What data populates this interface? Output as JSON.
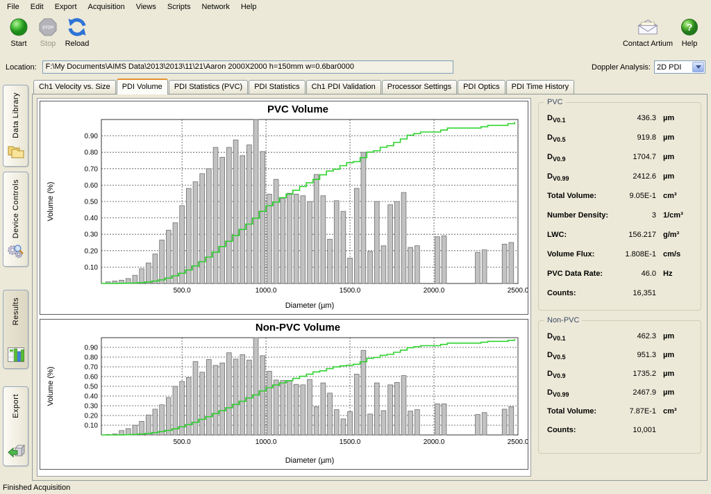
{
  "menu": {
    "items": [
      "File",
      "Edit",
      "Export",
      "Acquisition",
      "Views",
      "Scripts",
      "Network",
      "Help"
    ]
  },
  "toolbar": {
    "left": [
      {
        "label": "Start",
        "icon": "start-icon",
        "enabled": true
      },
      {
        "label": "Stop",
        "icon": "stop-icon",
        "enabled": false
      },
      {
        "label": "Reload",
        "icon": "reload-icon",
        "enabled": true
      }
    ],
    "right": [
      {
        "label": "Contact Artium",
        "icon": "envelope-icon",
        "enabled": true
      },
      {
        "label": "Help",
        "icon": "help-icon",
        "enabled": true
      }
    ]
  },
  "location": {
    "label": "Location:",
    "value": "F:\\My Documents\\AIMS Data\\2013\\2013\\11\\21\\Aaron 2000X2000  h=150mm w=0.6bar0000"
  },
  "doppler": {
    "label": "Doppler Analysis:",
    "value": "2D PDI"
  },
  "side_tabs": [
    {
      "label": "Data Library",
      "icon": "folders-icon",
      "active": false
    },
    {
      "label": "Device Controls",
      "icon": "gears-icon",
      "active": false
    },
    {
      "label": "Results",
      "icon": "results-icon",
      "active": true
    },
    {
      "label": "Export",
      "icon": "export-icon",
      "active": false
    }
  ],
  "tabs": {
    "items": [
      "Ch1 Velocity vs. Size",
      "PDI Volume",
      "PDI Statistics (PVC)",
      "PDI Statistics",
      "Ch1 PDI Validation",
      "Processor Settings",
      "PDI Optics",
      "PDI Time History"
    ],
    "active": "PDI Volume"
  },
  "stats": {
    "pvc": {
      "legend": "PVC",
      "rows": [
        {
          "label": "D",
          "sub": "V0.1",
          "value": "436.3",
          "unit": "µm"
        },
        {
          "label": "D",
          "sub": "V0.5",
          "value": "919.8",
          "unit": "µm"
        },
        {
          "label": "D",
          "sub": "V0.9",
          "value": "1704.7",
          "unit": "µm"
        },
        {
          "label": "D",
          "sub": "V0.99",
          "value": "2412.6",
          "unit": "µm"
        },
        {
          "label": "Total Volume:",
          "sub": "",
          "value": "9.05E-1",
          "unit": "cm³"
        },
        {
          "label": "Number Density:",
          "sub": "",
          "value": "3",
          "unit": "1/cm³"
        },
        {
          "label": "LWC:",
          "sub": "",
          "value": "156.217",
          "unit": "g/m³"
        },
        {
          "label": "Volume Flux:",
          "sub": "",
          "value": "1.808E-1",
          "unit": "cm/s"
        },
        {
          "label": "PVC Data Rate:",
          "sub": "",
          "value": "46.0",
          "unit": "Hz"
        },
        {
          "label": "Counts:",
          "sub": "",
          "value": "16,351",
          "unit": ""
        }
      ]
    },
    "non_pvc": {
      "legend": "Non-PVC",
      "rows": [
        {
          "label": "D",
          "sub": "V0.1",
          "value": "462.3",
          "unit": "µm"
        },
        {
          "label": "D",
          "sub": "V0.5",
          "value": "951.3",
          "unit": "µm"
        },
        {
          "label": "D",
          "sub": "V0.9",
          "value": "1735.2",
          "unit": "µm"
        },
        {
          "label": "D",
          "sub": "V0.99",
          "value": "2467.9",
          "unit": "µm"
        },
        {
          "label": "Total Volume:",
          "sub": "",
          "value": "7.87E-1",
          "unit": "cm³"
        },
        {
          "label": "Counts:",
          "sub": "",
          "value": "10,001",
          "unit": ""
        }
      ]
    }
  },
  "status_bar": "Finished Acquisition",
  "chart_data": [
    {
      "type": "bar",
      "title": "PVC Volume",
      "xlabel": "Diameter (µm)",
      "ylabel": "Volume (%)",
      "xlim": [
        20,
        2500
      ],
      "ylim": [
        0,
        1.0
      ],
      "grid": true,
      "bin_width": 40,
      "x_ticks": [
        500,
        1000,
        1500,
        2000,
        2500
      ],
      "x_tick_labels": [
        "500.0",
        "1000.0",
        "1500.0",
        "2000.0",
        "2500.0"
      ],
      "y_ticks": [
        0.1,
        0.2,
        0.3,
        0.4,
        0.5,
        0.6,
        0.7,
        0.8,
        0.9
      ],
      "bar_color": "#c2c2c2",
      "bar_border": "#6e6e6e",
      "line_color": "#2ed32e",
      "cumulative_line": true,
      "categories": [
        60,
        100,
        140,
        180,
        220,
        260,
        300,
        340,
        380,
        420,
        460,
        500,
        540,
        580,
        620,
        660,
        700,
        740,
        780,
        820,
        860,
        900,
        940,
        980,
        1020,
        1060,
        1100,
        1140,
        1180,
        1220,
        1260,
        1300,
        1340,
        1380,
        1420,
        1460,
        1500,
        1540,
        1580,
        1620,
        1660,
        1700,
        1740,
        1780,
        1820,
        1860,
        1900,
        1940,
        1980,
        2020,
        2060,
        2100,
        2140,
        2180,
        2220,
        2260,
        2300,
        2340,
        2380,
        2420,
        2460
      ],
      "values": [
        0.01,
        0.015,
        0.02,
        0.03,
        0.05,
        0.09,
        0.125,
        0.18,
        0.265,
        0.325,
        0.37,
        0.475,
        0.58,
        0.62,
        0.67,
        0.7,
        0.83,
        0.77,
        0.83,
        0.875,
        0.78,
        0.845,
        1.0,
        0.805,
        0.545,
        0.635,
        0.52,
        0.55,
        0.545,
        0.535,
        0.5,
        0.665,
        0.535,
        0.27,
        0.505,
        0.44,
        0.155,
        0.58,
        0.8,
        0.195,
        0.5,
        0.23,
        0.48,
        0.5,
        0.555,
        0.22,
        0.23,
        0,
        0,
        0.285,
        0.29,
        0,
        0,
        0,
        0,
        0.19,
        0.205,
        0,
        0,
        0.24,
        0.25
      ]
    },
    {
      "type": "bar",
      "title": "Non-PVC Volume",
      "xlabel": "Diameter (µm)",
      "ylabel": "Volume (%)",
      "xlim": [
        20,
        2500
      ],
      "ylim": [
        0,
        1.0
      ],
      "grid": true,
      "bin_width": 40,
      "x_ticks": [
        500,
        1000,
        1500,
        2000,
        2500
      ],
      "x_tick_labels": [
        "500.0",
        "1000.0",
        "1500.0",
        "2000.0",
        "2500.0"
      ],
      "y_ticks": [
        0.1,
        0.2,
        0.3,
        0.4,
        0.5,
        0.6,
        0.7,
        0.8,
        0.9
      ],
      "bar_color": "#c2c2c2",
      "bar_border": "#6e6e6e",
      "line_color": "#2ed32e",
      "cumulative_line": true,
      "categories": [
        60,
        100,
        140,
        180,
        220,
        260,
        300,
        340,
        380,
        420,
        460,
        500,
        540,
        580,
        620,
        660,
        700,
        740,
        780,
        820,
        860,
        900,
        940,
        980,
        1020,
        1060,
        1100,
        1140,
        1180,
        1220,
        1260,
        1300,
        1340,
        1380,
        1420,
        1460,
        1500,
        1540,
        1580,
        1620,
        1660,
        1700,
        1740,
        1780,
        1820,
        1860,
        1900,
        1940,
        1980,
        2020,
        2060,
        2100,
        2140,
        2180,
        2220,
        2260,
        2300,
        2340,
        2380,
        2420,
        2460
      ],
      "values": [
        0.005,
        0.01,
        0.045,
        0.065,
        0.1,
        0.14,
        0.205,
        0.265,
        0.31,
        0.385,
        0.5,
        0.55,
        0.59,
        0.755,
        0.645,
        0.775,
        0.715,
        0.74,
        0.845,
        0.78,
        0.825,
        0.77,
        1.0,
        0.815,
        0.655,
        0.565,
        0.56,
        0.555,
        0.52,
        0.515,
        0.57,
        0.29,
        0.535,
        0.43,
        0.26,
        0.165,
        0.24,
        0.625,
        0.87,
        0.215,
        0.535,
        0.25,
        0.515,
        0.54,
        0.61,
        0.245,
        0.26,
        0,
        0,
        0.32,
        0.32,
        0,
        0,
        0,
        0,
        0.21,
        0.23,
        0,
        0,
        0.265,
        0.29
      ]
    }
  ]
}
